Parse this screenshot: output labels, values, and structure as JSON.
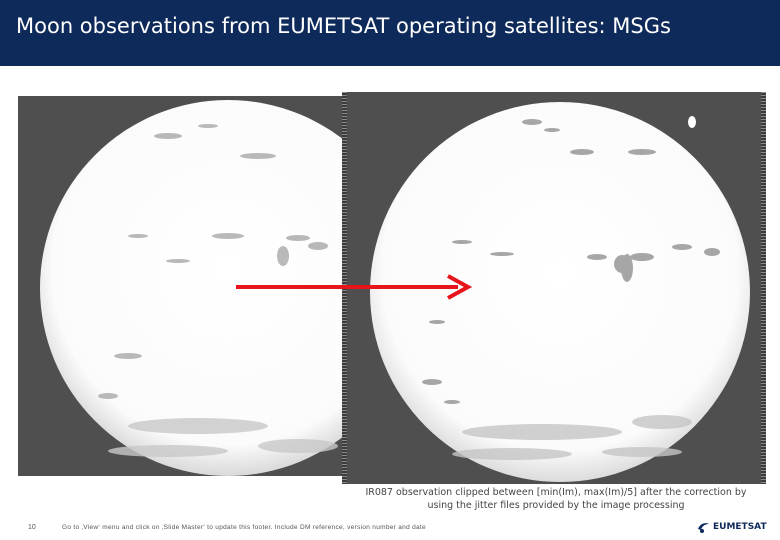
{
  "slide": {
    "title": "Moon observations from EUMETSAT operating satellites: MSGs",
    "caption": "IR087 observation clipped between [min(Im), max(Im)/5] after the correction by using the jitter files provided by the image processing",
    "page_number": "10",
    "footer": "Go to ‚View‘ menu and click on ‚Slide Master‘ to update this footer. Include DM reference, version number and date",
    "logo_text": "EUMETSAT"
  },
  "images": {
    "left_label": "",
    "right_label": ""
  },
  "colors": {
    "title_bar": "#0e2a5a",
    "panel_background": "#4f4f4f",
    "arrow": "#e8141b",
    "logo": "#0e2a5a"
  },
  "icons": {
    "arrow": "red-right-arrow",
    "logo": "eumetsat-logo-icon"
  }
}
